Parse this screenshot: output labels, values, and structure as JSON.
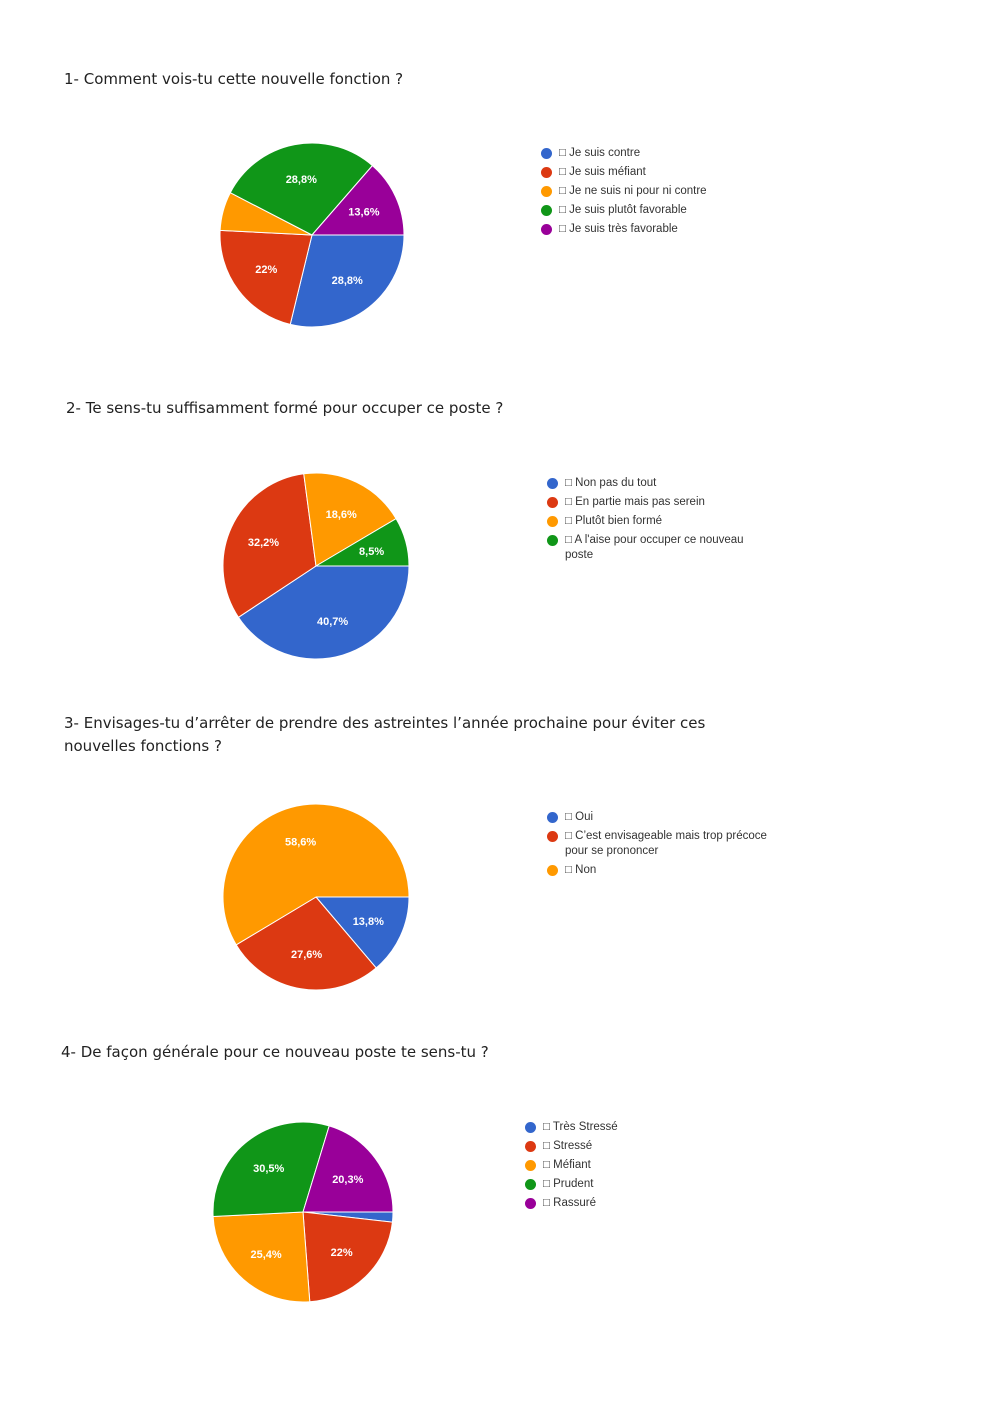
{
  "colors": {
    "blue": "#3366cc",
    "red": "#dc3912",
    "orange": "#ff9900",
    "green": "#109618",
    "purple": "#990099"
  },
  "chart_data": [
    {
      "type": "pie",
      "title": "1- Comment vois-tu cette nouvelle fonction ?",
      "categories": [
        "□ Je suis contre",
        "□ Je suis méfiant",
        "□ Je ne suis ni pour ni contre",
        "□ Je suis plutôt favorable",
        "□ Je suis très favorable"
      ],
      "values": [
        28.8,
        22,
        6.8,
        28.8,
        13.6
      ],
      "labels": [
        "28,8%",
        "22%",
        "",
        "28,8%",
        "13,6%"
      ],
      "colors": [
        "#3366cc",
        "#dc3912",
        "#ff9900",
        "#109618",
        "#990099"
      ],
      "legend_position": "right"
    },
    {
      "type": "pie",
      "title": "2- Te sens-tu suffisamment formé pour occuper ce poste ?",
      "categories": [
        "□ Non pas du tout",
        "□ En partie mais pas serein",
        "□ Plutôt bien formé",
        "□ A l'aise pour occuper ce nouveau poste"
      ],
      "values": [
        40.7,
        32.2,
        18.6,
        8.5
      ],
      "labels": [
        "40,7%",
        "32,2%",
        "18,6%",
        "8,5%"
      ],
      "colors": [
        "#3366cc",
        "#dc3912",
        "#ff9900",
        "#109618"
      ],
      "legend_position": "right"
    },
    {
      "type": "pie",
      "title": "3- Envisages-tu d’arrêter de prendre des astreintes l’année prochaine pour éviter ces nouvelles fonctions ?",
      "categories": [
        "□ Oui",
        "□ C’est envisageable mais trop précoce pour se prononcer",
        "□ Non"
      ],
      "values": [
        13.8,
        27.6,
        58.6
      ],
      "labels": [
        "13,8%",
        "27,6%",
        "58,6%"
      ],
      "colors": [
        "#3366cc",
        "#dc3912",
        "#ff9900"
      ],
      "legend_position": "right"
    },
    {
      "type": "pie",
      "title": "4- De façon générale pour ce nouveau poste te sens-tu ?",
      "categories": [
        "□ Très Stressé",
        "□ Stressé",
        "□ Méfiant",
        "□ Prudent",
        "□ Rassuré"
      ],
      "values": [
        1.8,
        22,
        25.4,
        30.5,
        20.3
      ],
      "labels": [
        "",
        "22%",
        "25,4%",
        "30,5%",
        "20,3%"
      ],
      "colors": [
        "#3366cc",
        "#dc3912",
        "#ff9900",
        "#109618",
        "#990099"
      ],
      "legend_position": "right"
    }
  ]
}
